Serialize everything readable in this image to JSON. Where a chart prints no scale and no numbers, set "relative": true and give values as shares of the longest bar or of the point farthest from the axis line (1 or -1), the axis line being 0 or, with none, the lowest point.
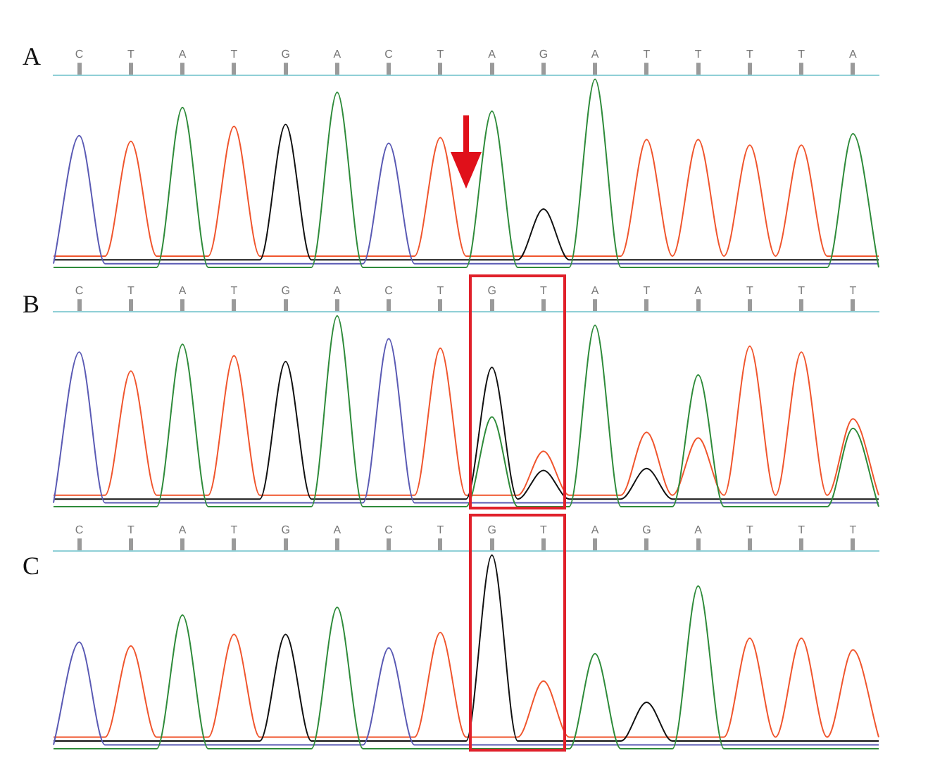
{
  "chart_data": [
    {
      "type": "line",
      "title": "A",
      "relative": true,
      "legend": false,
      "grid": false,
      "marker": "none",
      "line_style": "solid",
      "tick_labels": "x",
      "categories": [
        null,
        "C",
        null,
        "T",
        null,
        "A",
        null,
        "T",
        null,
        "G",
        null,
        "A",
        null,
        "C",
        null,
        "T",
        null,
        "A",
        null,
        "G",
        null,
        "A",
        null,
        "T",
        null,
        "T",
        null,
        "T",
        null,
        "T",
        null,
        "A",
        null
      ],
      "series": [
        {
          "color": "#2e8b3a",
          "values": [
            0,
            0,
            0,
            0,
            0,
            0.85,
            0,
            0,
            0,
            0,
            0,
            0.93,
            0,
            0,
            0,
            0,
            0,
            0.83,
            0,
            0,
            0,
            1,
            0,
            0,
            0,
            0,
            0,
            0,
            0,
            0,
            0,
            0.71,
            0
          ]
        },
        {
          "color": "#5a5ab4",
          "values": [
            0.02,
            0.7,
            0.02,
            0.02,
            0.02,
            0.02,
            0.02,
            0.02,
            0.02,
            0.02,
            0.02,
            0.02,
            0.02,
            0.66,
            0.02,
            0.02,
            0.02,
            0.02,
            0.02,
            0.02,
            0.02,
            0.02,
            0.02,
            0.02,
            0.02,
            0.02,
            0.02,
            0.02,
            0.02,
            0.02,
            0.02,
            0.02,
            0.02
          ]
        },
        {
          "color": "#111111",
          "values": [
            0.04,
            0.04,
            0.04,
            0.04,
            0.04,
            0.04,
            0.04,
            0.04,
            0.04,
            0.76,
            0.04,
            0.04,
            0.04,
            0.04,
            0.04,
            0.04,
            0.04,
            0.04,
            0.04,
            0.31,
            0.04,
            0.04,
            0.04,
            0.04,
            0.04,
            0.04,
            0.04,
            0.04,
            0.04,
            0.04,
            0.04,
            0.04,
            0.04
          ]
        },
        {
          "color": "#f0552d",
          "values": [
            0.06,
            0.06,
            0.06,
            0.67,
            0.06,
            0.06,
            0.06,
            0.75,
            0.06,
            0.06,
            0.06,
            0.06,
            0.06,
            0.06,
            0.06,
            0.69,
            0.06,
            0.06,
            0.06,
            0.06,
            0.06,
            0.06,
            0.06,
            0.68,
            0.06,
            0.68,
            0.06,
            0.65,
            0.06,
            0.65,
            0.06,
            0.06,
            0.06
          ]
        }
      ]
    },
    {
      "type": "line",
      "title": "B",
      "relative": true,
      "legend": false,
      "grid": false,
      "marker": "none",
      "line_style": "solid",
      "tick_labels": "x",
      "categories": [
        null,
        "C",
        null,
        "T",
        null,
        "A",
        null,
        "T",
        null,
        "G",
        null,
        "A",
        null,
        "C",
        null,
        "T",
        null,
        "G",
        null,
        "T",
        null,
        "A",
        null,
        "T",
        null,
        "A",
        null,
        "T",
        null,
        "T",
        null,
        "T",
        null
      ],
      "series": [
        {
          "color": "#2e8b3a",
          "values": [
            0,
            0,
            0,
            0,
            0,
            0.85,
            0,
            0,
            0,
            0,
            0,
            1,
            0,
            0,
            0,
            0,
            0,
            0.47,
            0,
            0,
            0,
            0.95,
            0,
            0,
            0,
            0.69,
            0,
            0,
            0,
            0,
            0,
            0.41,
            0
          ]
        },
        {
          "color": "#5a5ab4",
          "values": [
            0.02,
            0.81,
            0.02,
            0.02,
            0.02,
            0.02,
            0.02,
            0.02,
            0.02,
            0.02,
            0.02,
            0.02,
            0.02,
            0.88,
            0.02,
            0.02,
            0.02,
            0.02,
            0.02,
            0.02,
            0.02,
            0.02,
            0.02,
            0.02,
            0.02,
            0.02,
            0.02,
            0.02,
            0.02,
            0.02,
            0.02,
            0.02,
            0.02
          ]
        },
        {
          "color": "#111111",
          "values": [
            0.04,
            0.04,
            0.04,
            0.04,
            0.04,
            0.04,
            0.04,
            0.04,
            0.04,
            0.76,
            0.04,
            0.04,
            0.04,
            0.04,
            0.04,
            0.04,
            0.04,
            0.73,
            0.04,
            0.19,
            0.04,
            0.04,
            0.04,
            0.2,
            0.04,
            0.04,
            0.04,
            0.04,
            0.04,
            0.04,
            0.04,
            0.04,
            0.04
          ]
        },
        {
          "color": "#f0552d",
          "values": [
            0.06,
            0.06,
            0.06,
            0.71,
            0.06,
            0.06,
            0.06,
            0.79,
            0.06,
            0.06,
            0.06,
            0.06,
            0.06,
            0.06,
            0.06,
            0.83,
            0.06,
            0.06,
            0.06,
            0.29,
            0.06,
            0.06,
            0.06,
            0.39,
            0.06,
            0.36,
            0.06,
            0.84,
            0.06,
            0.81,
            0.06,
            0.46,
            0.06
          ]
        }
      ]
    },
    {
      "type": "line",
      "title": "C",
      "relative": true,
      "legend": false,
      "grid": false,
      "marker": "none",
      "line_style": "solid",
      "tick_labels": "x",
      "categories": [
        null,
        "C",
        null,
        "T",
        null,
        "A",
        null,
        "T",
        null,
        "G",
        null,
        "A",
        null,
        "C",
        null,
        "T",
        null,
        "G",
        null,
        "T",
        null,
        "A",
        null,
        "G",
        null,
        "A",
        null,
        "T",
        null,
        "T",
        null,
        "T",
        null
      ],
      "series": [
        {
          "color": "#2e8b3a",
          "values": [
            0,
            0,
            0,
            0,
            0,
            0.69,
            0,
            0,
            0,
            0,
            0,
            0.73,
            0,
            0,
            0,
            0,
            0,
            0,
            0,
            0,
            0,
            0.49,
            0,
            0,
            0,
            0.84,
            0,
            0,
            0,
            0,
            0,
            0,
            0
          ]
        },
        {
          "color": "#5a5ab4",
          "values": [
            0.02,
            0.55,
            0.02,
            0.02,
            0.02,
            0.02,
            0.02,
            0.02,
            0.02,
            0.02,
            0.02,
            0.02,
            0.02,
            0.52,
            0.02,
            0.02,
            0.02,
            0.02,
            0.02,
            0.02,
            0.02,
            0.02,
            0.02,
            0.02,
            0.02,
            0.02,
            0.02,
            0.02,
            0.02,
            0.02,
            0.02,
            0.02,
            0.02
          ]
        },
        {
          "color": "#111111",
          "values": [
            0.04,
            0.04,
            0.04,
            0.04,
            0.04,
            0.04,
            0.04,
            0.04,
            0.04,
            0.59,
            0.04,
            0.04,
            0.04,
            0.04,
            0.04,
            0.04,
            0.04,
            1,
            0.04,
            0.04,
            0.04,
            0.04,
            0.04,
            0.24,
            0.04,
            0.04,
            0.04,
            0.04,
            0.04,
            0.04,
            0.04,
            0.04,
            0.04
          ]
        },
        {
          "color": "#f0552d",
          "values": [
            0.06,
            0.06,
            0.06,
            0.53,
            0.06,
            0.06,
            0.06,
            0.59,
            0.06,
            0.06,
            0.06,
            0.06,
            0.06,
            0.06,
            0.06,
            0.6,
            0.06,
            0.06,
            0.06,
            0.35,
            0.06,
            0.06,
            0.06,
            0.06,
            0.06,
            0.06,
            0.06,
            0.57,
            0.06,
            0.57,
            0.06,
            0.51,
            0.06
          ]
        }
      ]
    }
  ]
}
